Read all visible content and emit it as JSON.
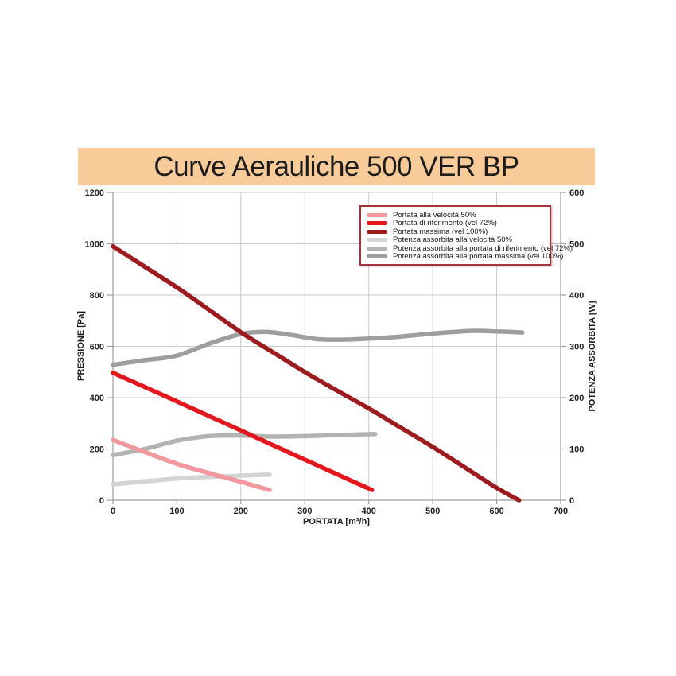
{
  "title": "Curve Aerauliche 500 VER BP",
  "title_bar_color": "#f8cb99",
  "colors": {
    "grid": "#c9c9c9",
    "axis": "#9d9d9d",
    "tick_label": "#1f1f1f",
    "legend_border": "#a2353b"
  },
  "chart_data": {
    "type": "line",
    "title": "Curve Aerauliche 500 VER BP",
    "xlabel": "PORTATA [m³/h]",
    "ylabel_left": "PRESSIONE [Pa]",
    "ylabel_right": "POTENZA ASSORBITA [W]",
    "xlim": [
      0,
      700
    ],
    "x_ticks": [
      0,
      100,
      200,
      300,
      400,
      500,
      600,
      700
    ],
    "ylim_left": [
      0,
      1200
    ],
    "y_ticks_left": [
      0,
      200,
      400,
      600,
      800,
      1000,
      1200
    ],
    "ylim_right": [
      0,
      600
    ],
    "y_ticks_right": [
      0,
      100,
      200,
      300,
      400,
      500,
      600
    ],
    "grid": true,
    "legend_position": "top-right",
    "series": [
      {
        "name": "Portata alla velocità 50%",
        "axis": "left",
        "unit": "Pa",
        "color": "#f2989e",
        "points": [
          [
            0,
            235
          ],
          [
            50,
            188
          ],
          [
            100,
            142
          ],
          [
            150,
            106
          ],
          [
            200,
            72
          ],
          [
            245,
            40
          ]
        ]
      },
      {
        "name": "Portata di riferimento (vel 72%)",
        "axis": "left",
        "unit": "Pa",
        "color": "#e4161e",
        "points": [
          [
            0,
            497
          ],
          [
            100,
            385
          ],
          [
            200,
            272
          ],
          [
            300,
            158
          ],
          [
            405,
            40
          ]
        ]
      },
      {
        "name": "Portata massima (vel 100%)",
        "axis": "left",
        "unit": "Pa",
        "color": "#9b1b1f",
        "points": [
          [
            0,
            990
          ],
          [
            50,
            910
          ],
          [
            100,
            830
          ],
          [
            150,
            743
          ],
          [
            200,
            655
          ],
          [
            250,
            577
          ],
          [
            300,
            500
          ],
          [
            350,
            428
          ],
          [
            400,
            358
          ],
          [
            450,
            283
          ],
          [
            500,
            208
          ],
          [
            550,
            128
          ],
          [
            600,
            48
          ],
          [
            635,
            0
          ]
        ]
      },
      {
        "name": "Potenza assorbita alla velocità 50%",
        "axis": "right",
        "unit": "W",
        "color": "#d4d4d4",
        "points": [
          [
            0,
            31
          ],
          [
            60,
            38
          ],
          [
            120,
            44
          ],
          [
            180,
            47
          ],
          [
            245,
            50
          ]
        ]
      },
      {
        "name": "Potenza assorbita alla portata di riferimento (vel 72%)",
        "axis": "right",
        "unit": "W",
        "color": "#b3b3b3",
        "points": [
          [
            0,
            88
          ],
          [
            50,
            100
          ],
          [
            100,
            116
          ],
          [
            150,
            125
          ],
          [
            200,
            126
          ],
          [
            250,
            124
          ],
          [
            300,
            125
          ],
          [
            350,
            127
          ],
          [
            410,
            129
          ]
        ]
      },
      {
        "name": "Potenza assorbita alla portata massima (vel 100%)",
        "axis": "right",
        "unit": "W",
        "color": "#9e9e9e",
        "points": [
          [
            0,
            264
          ],
          [
            50,
            273
          ],
          [
            100,
            282
          ],
          [
            150,
            305
          ],
          [
            200,
            324
          ],
          [
            240,
            328
          ],
          [
            280,
            322
          ],
          [
            320,
            314
          ],
          [
            360,
            313
          ],
          [
            400,
            315
          ],
          [
            450,
            319
          ],
          [
            500,
            325
          ],
          [
            560,
            330
          ],
          [
            600,
            329
          ],
          [
            640,
            327
          ]
        ]
      }
    ]
  }
}
